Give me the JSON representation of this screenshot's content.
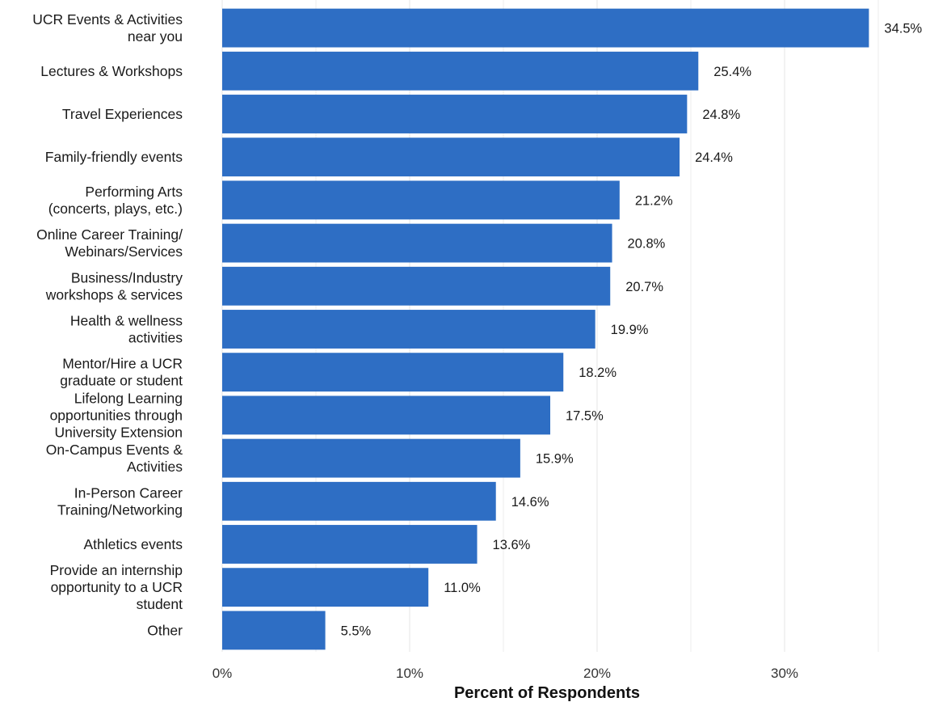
{
  "chart_data": {
    "type": "bar",
    "orientation": "horizontal",
    "categories": [
      [
        "UCR Events & Activities",
        "near you"
      ],
      [
        "Lectures & Workshops"
      ],
      [
        "Travel Experiences"
      ],
      [
        "Family-friendly events"
      ],
      [
        "Performing Arts",
        "(concerts, plays, etc.)"
      ],
      [
        "Online Career Training/",
        "Webinars/Services"
      ],
      [
        "Business/Industry",
        "workshops & services"
      ],
      [
        "Health & wellness",
        "activities"
      ],
      [
        "Mentor/Hire a UCR",
        "graduate or student"
      ],
      [
        "Lifelong Learning",
        "opportunities through",
        "University Extension"
      ],
      [
        "On-Campus Events &",
        "Activities"
      ],
      [
        "In-Person Career",
        "Training/Networking"
      ],
      [
        "Athletics events"
      ],
      [
        "Provide an internship",
        "opportunity to a UCR",
        "student"
      ],
      [
        "Other"
      ]
    ],
    "values": [
      34.5,
      25.4,
      24.8,
      24.4,
      21.2,
      20.8,
      20.7,
      19.9,
      18.2,
      17.5,
      15.9,
      14.6,
      13.6,
      11.0,
      5.5
    ],
    "value_labels": [
      "34.5%",
      "25.4%",
      "24.8%",
      "24.4%",
      "21.2%",
      "20.8%",
      "20.7%",
      "19.9%",
      "18.2%",
      "17.5%",
      "15.9%",
      "14.6%",
      "13.6%",
      "11.0%",
      "5.5%"
    ],
    "xlabel": "Percent of Respondents",
    "ylabel": "",
    "xlim": [
      0,
      36
    ],
    "x_ticks": [
      0,
      10,
      20,
      30
    ],
    "x_tick_labels": [
      "0%",
      "10%",
      "20%",
      "30%"
    ],
    "grid": "vertical",
    "bar_color": "#2e6ec4",
    "grid_color": "#e8e8e8"
  }
}
